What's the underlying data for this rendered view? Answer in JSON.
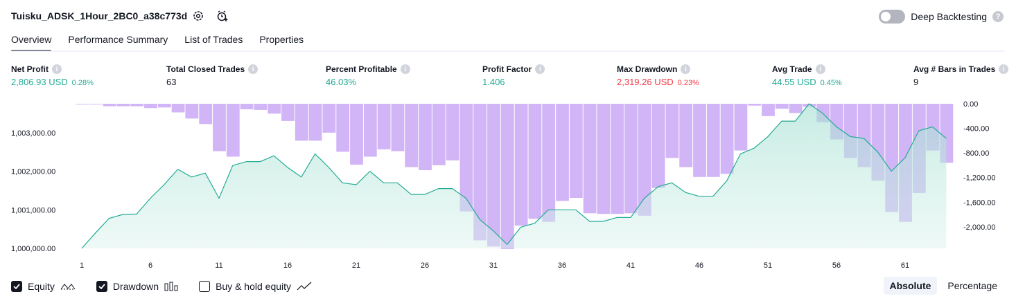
{
  "header": {
    "title": "Tuisku_ADSK_1Hour_2BC0_a38c773d",
    "deep_backtesting_label": "Deep Backtesting",
    "help_glyph": "?"
  },
  "tabs": [
    {
      "label": "Overview",
      "active": true
    },
    {
      "label": "Performance Summary",
      "active": false
    },
    {
      "label": "List of Trades",
      "active": false
    },
    {
      "label": "Properties",
      "active": false
    }
  ],
  "stats": {
    "info_glyph": "i",
    "net_profit": {
      "title": "Net Profit",
      "value": "2,806.93 USD",
      "pct": "0.28%"
    },
    "total_closed_trades": {
      "title": "Total Closed Trades",
      "value": "63"
    },
    "percent_profitable": {
      "title": "Percent Profitable",
      "value": "46.03%"
    },
    "profit_factor": {
      "title": "Profit Factor",
      "value": "1.406"
    },
    "max_drawdown": {
      "title": "Max Drawdown",
      "value": "2,319.26 USD",
      "pct": "0.23%"
    },
    "avg_trade": {
      "title": "Avg Trade",
      "value": "44.55 USD",
      "pct": "0.45%"
    },
    "avg_bars": {
      "title": "Avg # Bars in Trades",
      "value": "9"
    }
  },
  "colors": {
    "profit": "#22ab94",
    "loss": "#f23645",
    "equity_line": "#22ab94",
    "drawdown_bar": "#c9a8f5",
    "text": "#131722"
  },
  "legend": {
    "equity": "Equity",
    "drawdown": "Drawdown",
    "buy_hold": "Buy & hold equity"
  },
  "modes": {
    "absolute": "Absolute",
    "percentage": "Percentage"
  },
  "chart_data": {
    "type": "line+bar",
    "x_ticks": [
      "1",
      "6",
      "11",
      "16",
      "21",
      "26",
      "31",
      "36",
      "41",
      "46",
      "51",
      "56",
      "61"
    ],
    "x": [
      1,
      2,
      3,
      4,
      5,
      6,
      7,
      8,
      9,
      10,
      11,
      12,
      13,
      14,
      15,
      16,
      17,
      18,
      19,
      20,
      21,
      22,
      23,
      24,
      25,
      26,
      27,
      28,
      29,
      30,
      31,
      32,
      33,
      34,
      35,
      36,
      37,
      38,
      39,
      40,
      41,
      42,
      43,
      44,
      45,
      46,
      47,
      48,
      49,
      50,
      51,
      52,
      53,
      54,
      55,
      56,
      57,
      58,
      59,
      60,
      61,
      62,
      63,
      64
    ],
    "left_axis": {
      "label": "Equity",
      "ticks": [
        "1,000,000.00",
        "1,001,000.00",
        "1,002,000.00",
        "1,003,000.00"
      ],
      "tick_values": [
        1000000,
        1001000,
        1002000,
        1003000
      ],
      "range": [
        1000000,
        1003750
      ]
    },
    "right_axis": {
      "label": "Drawdown",
      "ticks": [
        "0.00",
        "-400.00",
        "-800.00",
        "-1,200.00",
        "-1,600.00",
        "-2,000.00"
      ],
      "tick_values": [
        0,
        -400,
        -800,
        -1200,
        -1600,
        -2000
      ],
      "range": [
        -2350,
        0
      ]
    },
    "series": [
      {
        "name": "Equity",
        "type": "line",
        "values": [
          1000000,
          1000400,
          1000780,
          1000880,
          1000890,
          1001300,
          1001650,
          1002050,
          1001850,
          1001950,
          1001300,
          1002150,
          1002250,
          1002250,
          1002400,
          1002100,
          1001850,
          1002450,
          1002100,
          1001700,
          1001650,
          1002000,
          1001700,
          1001700,
          1001400,
          1001400,
          1001550,
          1001550,
          1001300,
          1000750,
          1000450,
          1000100,
          1000550,
          1000650,
          1001000,
          1001000,
          1001000,
          1000700,
          1000700,
          1000800,
          1000800,
          1001300,
          1001600,
          1001700,
          1001450,
          1001350,
          1001350,
          1001750,
          1002450,
          1002600,
          1002900,
          1003300,
          1003300,
          1003750,
          1003500,
          1003150,
          1002900,
          1002850,
          1002500,
          1002000,
          1002350,
          1003050,
          1003150,
          1002850
        ]
      },
      {
        "name": "Drawdown",
        "type": "bar",
        "values": [
          -10,
          -10,
          -40,
          -40,
          -40,
          -70,
          -60,
          -140,
          -240,
          -330,
          -770,
          -860,
          -90,
          -100,
          -160,
          -280,
          -600,
          -600,
          -470,
          -780,
          -990,
          -860,
          -740,
          -770,
          -1030,
          -1080,
          -1000,
          -920,
          -1750,
          -2220,
          -2320,
          -2360,
          -1980,
          -1870,
          -1920,
          -1580,
          -1530,
          -1780,
          -1790,
          -1790,
          -1780,
          -1820,
          -1370,
          -880,
          -1030,
          -1190,
          -1190,
          -1140,
          -760,
          -30,
          -200,
          -80,
          -150,
          -50,
          -300,
          -580,
          -880,
          -1030,
          -1250,
          -1760,
          -1920,
          -1450,
          -760,
          -960
        ]
      }
    ]
  }
}
